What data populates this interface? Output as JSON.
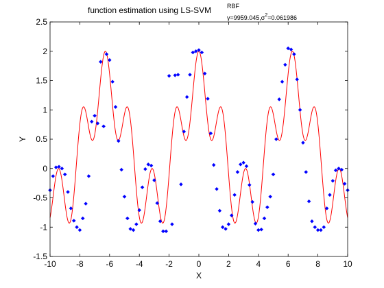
{
  "chart_data": {
    "type": "scatter",
    "title": {
      "prefix": "function estimation using  LS-SVM",
      "superscript": "RBF",
      "subscript_gamma": "γ=9959.045,σ",
      "subscript_sigma_power": "2",
      "subscript_rest": "=0.061986"
    },
    "xlabel": "X",
    "ylabel": "Y",
    "xlim": [
      -10,
      10
    ],
    "ylim": [
      -1.5,
      2.5
    ],
    "xticks": [
      "-10",
      "-8",
      "-6",
      "-4",
      "-2",
      "0",
      "2",
      "4",
      "6",
      "8",
      "10"
    ],
    "yticks": [
      "-1.5",
      "-1",
      "-0.5",
      "0",
      "0.5",
      "1",
      "1.5",
      "2",
      "2.5"
    ],
    "grid": false,
    "series": [
      {
        "kind": "line",
        "color": "#ff0000",
        "model": "cos(x) + 1.2 * cos(2x)^2 - 0.2",
        "x_range": [
          -10,
          10
        ]
      },
      {
        "kind": "points",
        "color": "#0000ff",
        "marker": "diamond",
        "x": [
          -10.0,
          -9.8,
          -9.6,
          -9.4,
          -9.2,
          -9.0,
          -8.8,
          -8.6,
          -8.4,
          -8.2,
          -8.0,
          -7.8,
          -7.6,
          -7.4,
          -7.2,
          -7.0,
          -6.8,
          -6.6,
          -6.4,
          -6.2,
          -6.0,
          -5.8,
          -5.6,
          -5.4,
          -5.2,
          -5.0,
          -4.8,
          -4.6,
          -4.4,
          -4.2,
          -4.0,
          -3.8,
          -3.6,
          -3.4,
          -3.2,
          -3.0,
          -2.8,
          -2.6,
          -2.4,
          -2.2,
          -2.0,
          -1.8,
          -1.6,
          -1.4,
          -1.2,
          -1.0,
          -0.8,
          -0.6,
          -0.4,
          -0.2,
          0.0,
          0.2,
          0.4,
          0.6,
          0.8,
          1.0,
          1.2,
          1.4,
          1.6,
          1.8,
          2.0,
          2.2,
          2.4,
          2.6,
          2.8,
          3.0,
          3.2,
          3.4,
          3.6,
          3.8,
          4.0,
          4.2,
          4.4,
          4.6,
          4.8,
          5.0,
          5.2,
          5.4,
          5.6,
          5.8,
          6.0,
          6.2,
          6.4,
          6.6,
          6.8,
          7.0,
          7.2,
          7.4,
          7.6,
          7.8,
          8.0,
          8.2,
          8.4,
          8.6,
          8.8,
          9.0,
          9.2,
          9.4,
          9.6,
          9.8,
          10.0
        ],
        "y": [
          -0.37,
          -0.13,
          0.02,
          0.03,
          0.0,
          -0.1,
          -0.4,
          -0.68,
          -0.89,
          -1.0,
          -1.05,
          -0.85,
          -0.6,
          -0.13,
          0.8,
          0.9,
          0.77,
          1.82,
          0.72,
          1.95,
          1.85,
          1.48,
          1.05,
          0.47,
          -0.02,
          -0.48,
          -0.85,
          -1.03,
          -1.05,
          -0.95,
          -0.71,
          -0.32,
          -0.01,
          0.07,
          0.05,
          -0.2,
          -0.59,
          -0.9,
          -1.07,
          -1.07,
          1.58,
          -0.95,
          1.59,
          1.6,
          -0.27,
          0.63,
          1.22,
          1.6,
          1.98,
          2.0,
          2.02,
          1.98,
          1.62,
          1.19,
          0.6,
          0.06,
          -0.35,
          -0.72,
          -1.0,
          -1.03,
          -0.95,
          -0.8,
          -0.45,
          -0.06,
          0.07,
          0.1,
          0.04,
          -0.28,
          -0.57,
          -0.94,
          -1.05,
          -1.04,
          -0.85,
          -0.66,
          -0.48,
          -0.1,
          0.5,
          1.18,
          1.48,
          1.77,
          2.05,
          2.03,
          1.95,
          1.52,
          1.0,
          0.44,
          -0.06,
          -0.56,
          -0.9,
          -1.0,
          -1.05,
          -1.05,
          -1.0,
          -0.68,
          -0.45,
          -0.21,
          -0.03,
          0.0,
          -0.02,
          -0.26,
          -0.37
        ]
      }
    ]
  }
}
